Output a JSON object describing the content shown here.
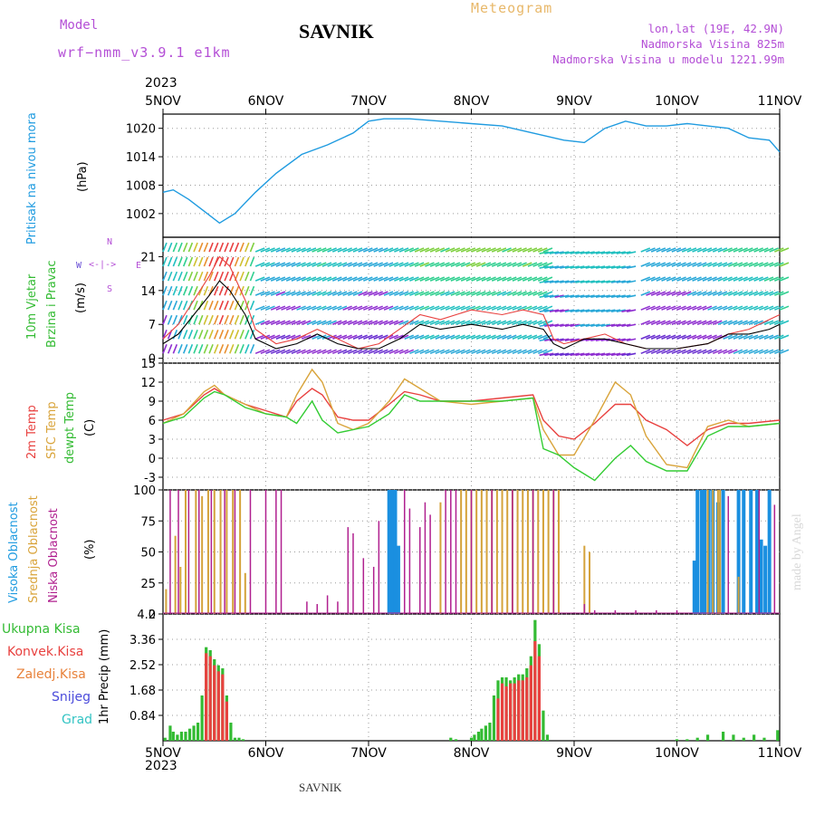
{
  "header": {
    "model_label": "Model",
    "model_name": "wrf−nmm_v3.9.1 e1km",
    "station": "SAVNIK",
    "product": "Meteogram",
    "lonlat": "lon,lat (19E, 42.9N)",
    "elevation": "Nadmorska Visina 825m",
    "model_elevation": "Nadmorska Visina u modelu 1221.99m",
    "credit": "made by Angel",
    "footer_station": "SAVNIK"
  },
  "colors": {
    "pressure": "#1f9be0",
    "temp2m": "#e8413f",
    "sfc_temp": "#d9a43b",
    "dewpt": "#33cc33",
    "cloud_high": "#1a8fe0",
    "cloud_mid": "#d4a23a",
    "cloud_low": "#b0208f",
    "precip_total": "#33bb33",
    "precip_conv": "#e8413f",
    "wind_speed_line": "#000000",
    "gust_line": "#e8413f",
    "header_purple": "#b44fd6",
    "header_orange": "#e8b86a"
  },
  "time_axis": {
    "year": "2023",
    "ticks": [
      "5NOV",
      "6NOV",
      "7NOV",
      "8NOV",
      "9NOV",
      "10NOV",
      "11NOV"
    ]
  },
  "wind_compass": {
    "north": "N",
    "south": "S",
    "west": "W",
    "east": "E"
  },
  "chart_data": [
    {
      "type": "line",
      "name": "pressure",
      "ylabel_lines": [
        "Pritisak na nivou mora",
        "(hPa)"
      ],
      "ylim": [
        997,
        1023
      ],
      "yticks": [
        1002,
        1008,
        1014,
        1020
      ],
      "x_days": [
        0,
        0.1,
        0.25,
        0.4,
        0.55,
        0.7,
        0.9,
        1.1,
        1.35,
        1.6,
        1.85,
        2.0,
        2.15,
        2.4,
        2.7,
        3.0,
        3.3,
        3.6,
        3.9,
        4.1,
        4.3,
        4.5,
        4.7,
        4.9,
        5.1,
        5.3,
        5.5,
        5.7,
        5.9,
        6.0
      ],
      "values": [
        1006.5,
        1007,
        1005,
        1002.5,
        1000,
        1002,
        1006.5,
        1010.5,
        1014.5,
        1016.5,
        1019,
        1021.5,
        1022,
        1022,
        1021.5,
        1021,
        1020.5,
        1019,
        1017.5,
        1017,
        1020,
        1021.5,
        1020.5,
        1020.5,
        1021,
        1020.5,
        1020,
        1018,
        1017.5,
        1015
      ]
    },
    {
      "type": "line",
      "name": "wind",
      "ylabel_lines": [
        "10m Vjetar",
        "Brzina i Pravac",
        "(m/s)"
      ],
      "ylim": [
        -1,
        25
      ],
      "yticks": [
        0,
        7,
        14,
        21
      ],
      "wind_rows_ms": [
        1,
        4,
        7,
        10,
        13,
        16,
        19,
        22,
        25
      ],
      "x_days": [
        0,
        0.15,
        0.3,
        0.45,
        0.55,
        0.65,
        0.8,
        0.9,
        1.1,
        1.3,
        1.5,
        1.7,
        1.9,
        2.1,
        2.3,
        2.5,
        2.7,
        3.0,
        3.3,
        3.5,
        3.7,
        3.8,
        3.9,
        4.1,
        4.3,
        4.5,
        4.7,
        5.0,
        5.3,
        5.5,
        5.7,
        5.9,
        6.0
      ],
      "speed": [
        3,
        5,
        9,
        13,
        16,
        14,
        9,
        4,
        2,
        3,
        5,
        3,
        2,
        2,
        4,
        7,
        6,
        7,
        6,
        7,
        6,
        3,
        2,
        4,
        4,
        3,
        2,
        2,
        3,
        5,
        5,
        6,
        7
      ],
      "gust": [
        4,
        7,
        12,
        17,
        21,
        19,
        12,
        6,
        3,
        4,
        6,
        4,
        2,
        3,
        6,
        9,
        8,
        10,
        9,
        10,
        9,
        4,
        3,
        4,
        5,
        3,
        2,
        2,
        3,
        5,
        6,
        8,
        9
      ]
    },
    {
      "type": "line",
      "name": "temperature",
      "ylabel_lines": [
        "2m Temp",
        "SFC Temp",
        "dewpt Temp",
        "(C)"
      ],
      "ylim": [
        -5,
        15
      ],
      "yticks": [
        -3,
        0,
        3,
        6,
        9,
        12,
        15
      ],
      "x_days": [
        0,
        0.2,
        0.4,
        0.5,
        0.6,
        0.8,
        1.0,
        1.2,
        1.3,
        1.45,
        1.55,
        1.7,
        1.85,
        2.0,
        2.2,
        2.35,
        2.5,
        2.7,
        3.0,
        3.3,
        3.6,
        3.7,
        3.85,
        4.0,
        4.2,
        4.4,
        4.55,
        4.7,
        4.9,
        5.1,
        5.3,
        5.5,
        5.7,
        6.0
      ],
      "series": [
        {
          "name": "2m Temp",
          "values": [
            6,
            7,
            10,
            11,
            10,
            8.5,
            7.5,
            6.5,
            9,
            11,
            10,
            6.5,
            6,
            6,
            8.5,
            10.5,
            10,
            9,
            9,
            9.5,
            10,
            6,
            3.5,
            3,
            5.5,
            8.5,
            8.5,
            6,
            4.5,
            2,
            4.5,
            5.5,
            5.5,
            6
          ]
        },
        {
          "name": "SFC Temp",
          "values": [
            5.5,
            7,
            10.5,
            11.5,
            10,
            8.5,
            7,
            6.5,
            10,
            14,
            12,
            5.5,
            4.5,
            5.5,
            9,
            12.5,
            11,
            9,
            8.5,
            9,
            9.5,
            4.5,
            0.5,
            0.5,
            6,
            12,
            10,
            3.5,
            -1,
            -1.5,
            5,
            6,
            5,
            5.5
          ]
        },
        {
          "name": "dewpt Temp",
          "values": [
            5.5,
            6.5,
            9.5,
            10.5,
            10,
            8,
            7,
            6.5,
            5.5,
            9,
            6,
            4,
            4.5,
            5,
            7,
            10,
            9,
            9,
            9,
            9,
            9.5,
            1.5,
            0.5,
            -1.5,
            -3.5,
            0,
            2,
            -0.5,
            -2,
            -2,
            3.5,
            5,
            5,
            5.5
          ]
        }
      ]
    },
    {
      "type": "bar",
      "name": "cloud_cover",
      "ylabel_lines": [
        "Visoka Oblacnost",
        "Srednja Oblacnost",
        "Niska Oblacnost",
        "(%)"
      ],
      "ylim": [
        0,
        100
      ],
      "yticks": [
        0,
        25,
        50,
        75,
        100
      ],
      "series": [
        {
          "name": "Visoka Oblacnost",
          "x_days": [
            2.2,
            2.23,
            2.26,
            2.29,
            5.17,
            5.2,
            5.24,
            5.27,
            5.31,
            5.35,
            5.4,
            5.45,
            5.6,
            5.65,
            5.72,
            5.78,
            5.82,
            5.86,
            5.9
          ],
          "values": [
            100,
            100,
            100,
            55,
            43,
            100,
            100,
            100,
            100,
            100,
            90,
            100,
            100,
            100,
            100,
            100,
            60,
            55,
            100
          ]
        },
        {
          "name": "Srednja Oblacnost",
          "x_days": [
            0.03,
            0.12,
            0.17,
            0.22,
            0.32,
            0.38,
            0.44,
            0.5,
            0.56,
            0.62,
            0.68,
            0.75,
            0.8,
            2.7,
            2.9,
            2.95,
            3.0,
            3.05,
            3.1,
            3.15,
            3.2,
            3.25,
            3.3,
            3.35,
            3.4,
            3.45,
            3.5,
            3.55,
            3.6,
            3.65,
            3.7,
            3.75,
            3.8,
            3.85,
            4.1,
            4.15,
            5.3,
            5.35,
            5.4,
            5.42,
            5.6
          ],
          "values": [
            20,
            63,
            38,
            100,
            100,
            95,
            100,
            100,
            100,
            100,
            100,
            100,
            33,
            90,
            100,
            100,
            100,
            100,
            100,
            100,
            100,
            100,
            100,
            100,
            100,
            100,
            100,
            100,
            100,
            100,
            100,
            100,
            100,
            100,
            55,
            50,
            100,
            100,
            100,
            100,
            30
          ]
        },
        {
          "name": "Niska Oblacnost",
          "x_days": [
            0.07,
            0.15,
            0.25,
            0.35,
            0.47,
            0.6,
            0.7,
            0.85,
            1.0,
            1.1,
            1.15,
            1.4,
            1.5,
            1.6,
            1.7,
            1.8,
            1.85,
            1.95,
            2.05,
            2.1,
            2.35,
            2.4,
            2.5,
            2.55,
            2.6,
            2.75,
            2.8,
            2.85,
            3.0,
            3.2,
            3.4,
            3.6,
            3.8,
            4.1,
            4.2,
            4.4,
            4.6,
            4.8,
            5.0,
            5.5,
            5.8,
            5.95
          ],
          "values": [
            100,
            100,
            100,
            100,
            100,
            100,
            100,
            100,
            100,
            100,
            100,
            10,
            8,
            15,
            10,
            70,
            65,
            45,
            38,
            75,
            100,
            85,
            70,
            90,
            80,
            100,
            100,
            100,
            100,
            100,
            100,
            100,
            100,
            8,
            3,
            3,
            3,
            3,
            3,
            95,
            100,
            88
          ]
        }
      ]
    },
    {
      "type": "bar",
      "name": "precipitation",
      "ylabel_lines": [
        "1hr Precip (mm)"
      ],
      "legend": [
        "Ukupna Kisa",
        "Konvek.Kisa",
        "Zaledj.Kisa",
        "Snijeg",
        "Grad"
      ],
      "ylim": [
        0,
        4.2
      ],
      "yticks": [
        "0.84",
        "1.68",
        "2.52",
        "3.36",
        "4.2"
      ],
      "series": [
        {
          "name": "Ukupna Kisa",
          "x_days": [
            0.02,
            0.07,
            0.1,
            0.14,
            0.18,
            0.22,
            0.26,
            0.3,
            0.34,
            0.38,
            0.42,
            0.46,
            0.5,
            0.54,
            0.58,
            0.62,
            0.66,
            0.7,
            0.74,
            0.78,
            2.8,
            2.85,
            3.0,
            3.03,
            3.07,
            3.1,
            3.14,
            3.18,
            3.22,
            3.26,
            3.3,
            3.34,
            3.38,
            3.42,
            3.46,
            3.5,
            3.54,
            3.58,
            3.62,
            3.66,
            3.7,
            3.74,
            5.0,
            5.1,
            5.2,
            5.3,
            5.45,
            5.55,
            5.65,
            5.75,
            5.85,
            5.98
          ],
          "values": [
            0.1,
            0.5,
            0.3,
            0.2,
            0.3,
            0.3,
            0.4,
            0.5,
            0.6,
            1.5,
            3.1,
            3.0,
            2.7,
            2.5,
            2.4,
            1.5,
            0.6,
            0.1,
            0.1,
            0.05,
            0.1,
            0.05,
            0.1,
            0.2,
            0.3,
            0.4,
            0.5,
            0.6,
            1.5,
            2.0,
            2.1,
            2.1,
            2.0,
            2.1,
            2.2,
            2.2,
            2.4,
            2.8,
            4.0,
            3.2,
            1.0,
            0.2,
            0.05,
            0.05,
            0.1,
            0.2,
            0.3,
            0.2,
            0.1,
            0.2,
            0.1,
            0.35
          ]
        },
        {
          "name": "Konvek.Kisa",
          "x_days": [
            0.42,
            0.46,
            0.5,
            0.54,
            0.58,
            0.62,
            3.26,
            3.3,
            3.34,
            3.38,
            3.42,
            3.46,
            3.5,
            3.54,
            3.58,
            3.62,
            3.66
          ],
          "values": [
            2.9,
            2.8,
            2.5,
            2.3,
            2.2,
            1.3,
            1.4,
            1.9,
            1.8,
            1.9,
            1.9,
            2.0,
            2.0,
            2.1,
            2.5,
            3.3,
            2.8
          ]
        }
      ]
    }
  ]
}
